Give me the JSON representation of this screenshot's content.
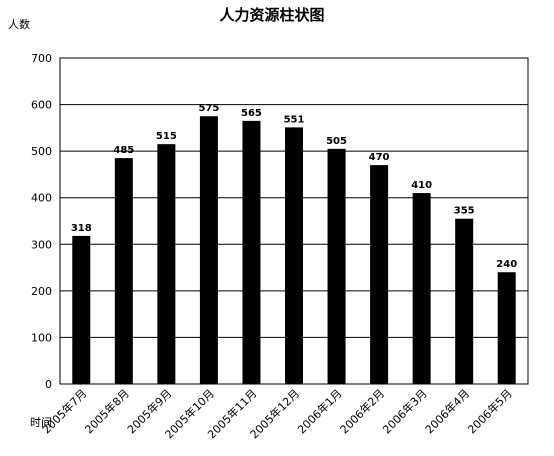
{
  "chart_data": {
    "type": "bar",
    "title": "人力资源柱状图",
    "y_label": "人数",
    "x_label": "时间",
    "categories": [
      "2005年7月",
      "2005年8月",
      "2005年9月",
      "2005年10月",
      "2005年11月",
      "2005年12月",
      "2006年1月",
      "2006年2月",
      "2006年3月",
      "2006年4月",
      "2006年5月"
    ],
    "values": [
      318,
      485,
      515,
      575,
      565,
      551,
      505,
      470,
      410,
      355,
      240
    ],
    "color": "#000000",
    "ylim": [
      0,
      700
    ],
    "yticks": [
      0,
      100,
      200,
      300,
      400,
      500,
      600,
      700
    ],
    "grid": true
  }
}
